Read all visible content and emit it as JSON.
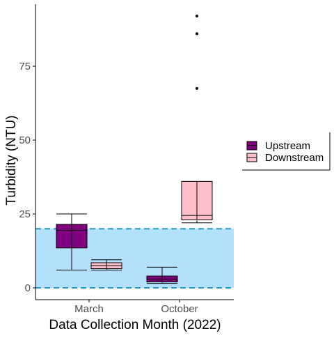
{
  "chart_data": {
    "type": "boxplot",
    "xlabel": "Data Collection Month (2022)",
    "ylabel": "Turbidity (NTU)",
    "categories": [
      "March",
      "October"
    ],
    "ylim": [
      -4,
      96
    ],
    "yticks": [
      0,
      25,
      50,
      75
    ],
    "grid": false,
    "legend_position": "right",
    "reference_band": {
      "low": 0,
      "high": 20,
      "color": "#b3e0fb",
      "line_color": "#1f9bc9"
    },
    "series": [
      {
        "name": "Upstream",
        "fill": "#800080",
        "boxes": [
          {
            "category": "March",
            "min": 6,
            "q1": 13.5,
            "median": 19.5,
            "q3": 21.5,
            "max": 25,
            "outliers": []
          },
          {
            "category": "October",
            "min": 1.5,
            "q1": 2,
            "median": 3,
            "q3": 4,
            "max": 7,
            "outliers": []
          }
        ]
      },
      {
        "name": "Downstream",
        "fill": "#ffc0cb",
        "boxes": [
          {
            "category": "March",
            "min": 6,
            "q1": 6.5,
            "median": 7.5,
            "q3": 8.5,
            "max": 9.5,
            "outliers": []
          },
          {
            "category": "October",
            "min": 22,
            "q1": 23,
            "median": 24.5,
            "q3": 36,
            "max": 36,
            "outliers": [
              67.5,
              86,
              92
            ]
          }
        ]
      }
    ]
  }
}
